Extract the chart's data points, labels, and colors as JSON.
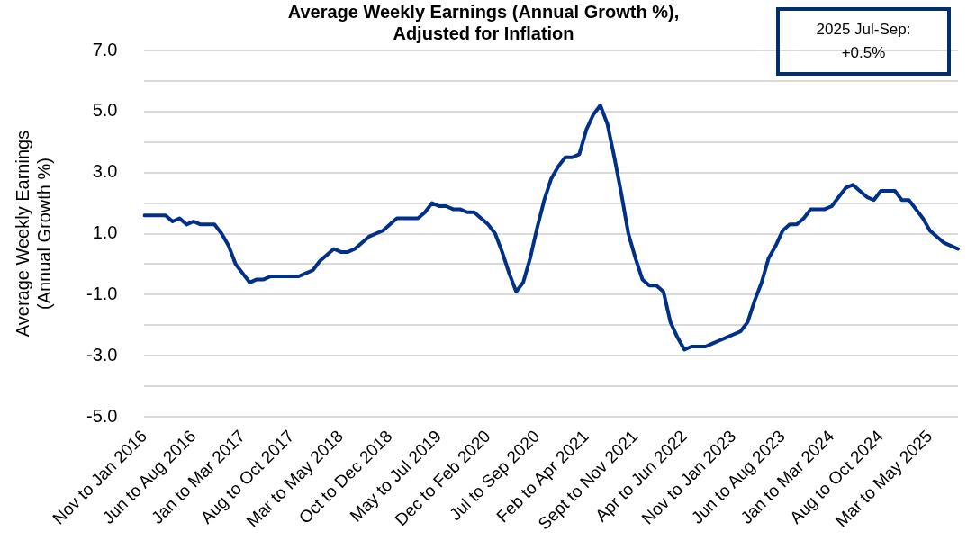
{
  "chart_data": {
    "type": "line",
    "title": "Average Weekly Earnings (Annual Growth %),\nAdjusted for Inflation",
    "ylabel": "Average Weekly Earnings\n(Annual Growth %)",
    "categories": [
      "Nov to Jan 2016",
      null,
      null,
      null,
      null,
      null,
      null,
      "Jun to Aug 2016",
      null,
      null,
      null,
      null,
      null,
      null,
      "Jan to Mar 2017",
      null,
      null,
      null,
      null,
      null,
      null,
      "Aug to Oct 2017",
      null,
      null,
      null,
      null,
      null,
      null,
      "Mar to May 2018",
      null,
      null,
      null,
      null,
      null,
      null,
      "Oct to Dec 2018",
      null,
      null,
      null,
      null,
      null,
      null,
      "May to Jul 2019",
      null,
      null,
      null,
      null,
      null,
      null,
      "Dec to Feb 2020",
      null,
      null,
      null,
      null,
      null,
      null,
      "Jul to Sep 2020",
      null,
      null,
      null,
      null,
      null,
      null,
      "Feb to Apr 2021",
      null,
      null,
      null,
      null,
      null,
      null,
      "Sept to Nov 2021",
      null,
      null,
      null,
      null,
      null,
      null,
      "Apr to Jun 2022",
      null,
      null,
      null,
      null,
      null,
      null,
      "Nov to Jan 2023",
      null,
      null,
      null,
      null,
      null,
      null,
      "Jun to Aug 2023",
      null,
      null,
      null,
      null,
      null,
      null,
      "Jan to Mar 2024",
      null,
      null,
      null,
      null,
      null,
      null,
      "Aug to Oct 2024",
      null,
      null,
      null,
      null,
      null,
      null,
      "Mar to May 2025",
      null,
      null,
      null,
      null
    ],
    "series": [
      {
        "color": "#003087",
        "values": [
          1.6,
          1.6,
          1.6,
          1.6,
          1.4,
          1.5,
          1.3,
          1.4,
          1.3,
          1.3,
          1.3,
          1.0,
          0.6,
          0.0,
          -0.3,
          -0.6,
          -0.5,
          -0.5,
          -0.4,
          -0.4,
          -0.4,
          -0.4,
          -0.4,
          -0.3,
          -0.2,
          0.1,
          0.3,
          0.5,
          0.4,
          0.4,
          0.5,
          0.7,
          0.9,
          1.0,
          1.1,
          1.3,
          1.5,
          1.5,
          1.5,
          1.5,
          1.7,
          2.0,
          1.9,
          1.9,
          1.8,
          1.8,
          1.7,
          1.7,
          1.5,
          1.3,
          1.0,
          0.4,
          -0.3,
          -0.9,
          -0.6,
          0.2,
          1.2,
          2.1,
          2.8,
          3.2,
          3.5,
          3.5,
          3.6,
          4.4,
          4.9,
          5.2,
          4.6,
          3.5,
          2.3,
          1.0,
          0.2,
          -0.5,
          -0.7,
          -0.7,
          -0.9,
          -1.9,
          -2.4,
          -2.8,
          -2.7,
          -2.7,
          -2.7,
          -2.6,
          -2.5,
          -2.4,
          -2.3,
          -2.2,
          -1.9,
          -1.2,
          -0.6,
          0.2,
          0.6,
          1.1,
          1.3,
          1.3,
          1.5,
          1.8,
          1.8,
          1.8,
          1.9,
          2.2,
          2.5,
          2.6,
          2.4,
          2.2,
          2.1,
          2.4,
          2.4,
          2.4,
          2.1,
          2.1,
          1.8,
          1.5,
          1.1,
          0.9,
          0.7,
          0.6,
          0.5
        ]
      }
    ],
    "ylim": [
      -5,
      7
    ],
    "yticks": [
      {
        "value": -5,
        "label": "-5.0"
      },
      {
        "value": -4,
        "label": null
      },
      {
        "value": -3,
        "label": "-3.0"
      },
      {
        "value": -2,
        "label": null
      },
      {
        "value": -1,
        "label": "-1.0"
      },
      {
        "value": 0,
        "label": null
      },
      {
        "value": 1,
        "label": "1.0"
      },
      {
        "value": 2,
        "label": null
      },
      {
        "value": 3,
        "label": "3.0"
      },
      {
        "value": 4,
        "label": null
      },
      {
        "value": 5,
        "label": "5.0"
      },
      {
        "value": 6,
        "label": null
      },
      {
        "value": 7,
        "label": "7.0"
      }
    ],
    "grid": "y",
    "legend": false,
    "marker": "none",
    "line_style": "solid",
    "annotations": [
      "2025 Jul-Sep:\n+0.5%"
    ]
  }
}
